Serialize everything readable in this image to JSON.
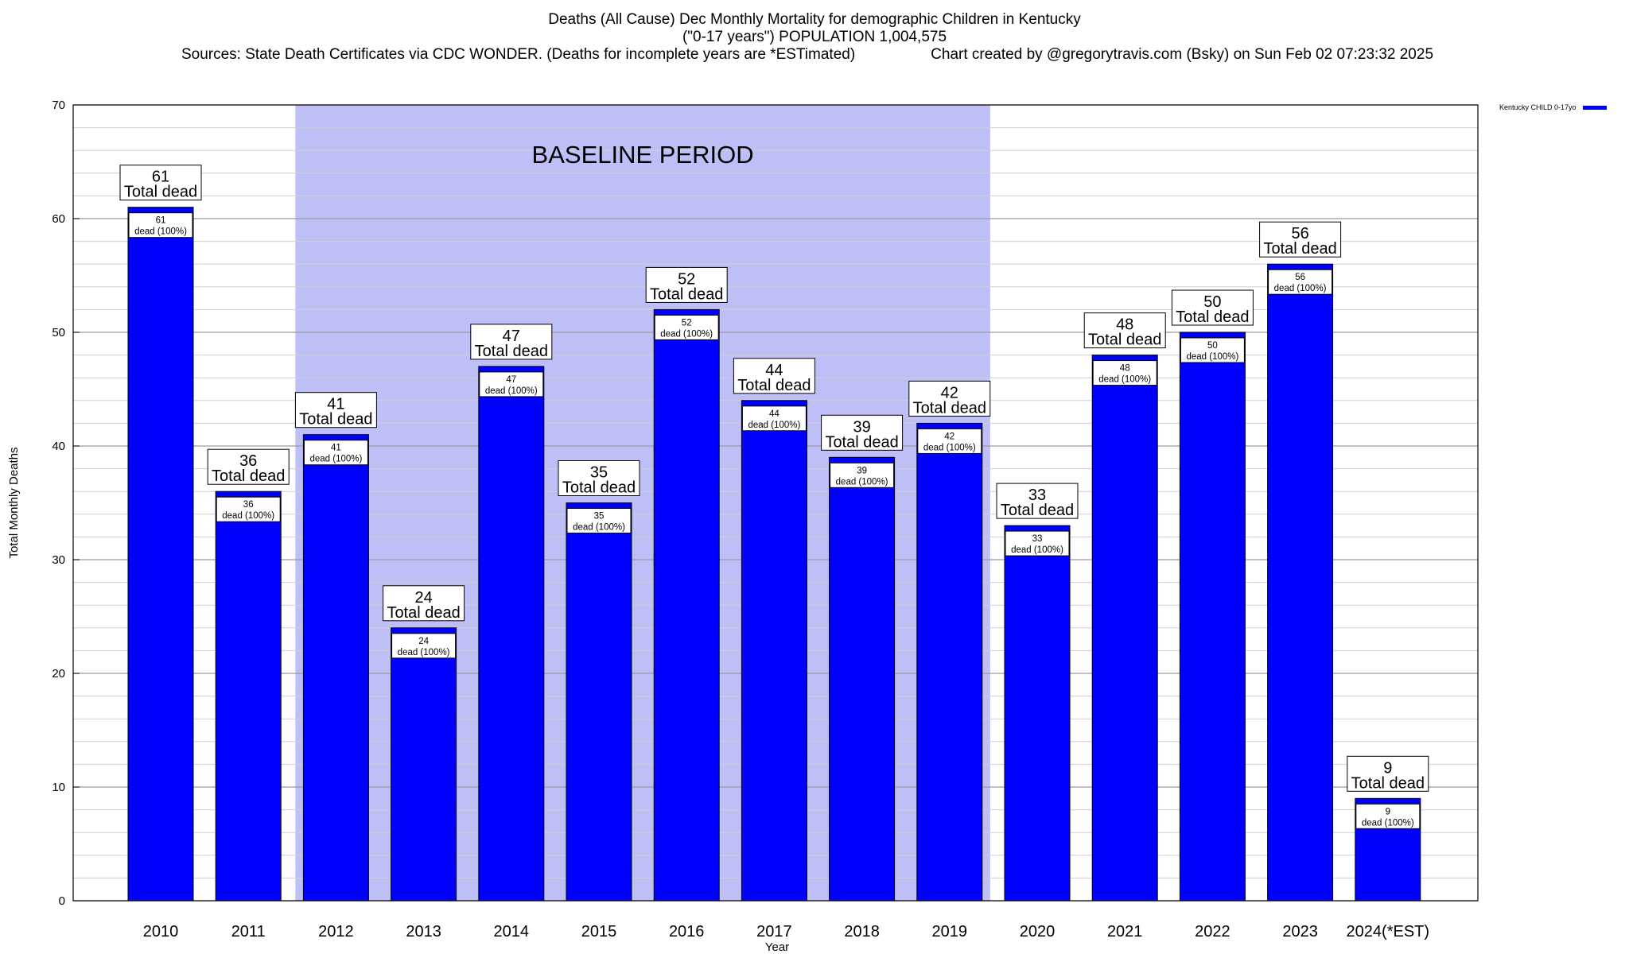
{
  "title": {
    "line1": "Deaths (All Cause) Dec Monthly Mortality for demographic Children in Kentucky",
    "line2": "(\"0-17 years\") POPULATION 1,004,575",
    "sources": "Sources: State Death Certificates via CDC WONDER. (Deaths for incomplete years are *ESTimated)",
    "credit": "Chart created by @gregorytravis.com (Bsky) on Sun Feb 02 07:23:32 2025"
  },
  "legend": {
    "label": "Kentucky CHILD 0-17yo",
    "color": "#0000ff"
  },
  "chart_data": {
    "type": "bar",
    "xlabel": "Year",
    "ylabel": "Total Monthly Deaths",
    "ylim": [
      0,
      70
    ],
    "yticks": [
      0,
      10,
      20,
      30,
      40,
      50,
      60,
      70
    ],
    "grid": true,
    "categories": [
      "2010",
      "2011",
      "2012",
      "2013",
      "2014",
      "2015",
      "2016",
      "2017",
      "2018",
      "2019",
      "2020",
      "2021",
      "2022",
      "2023",
      "2024(*EST)"
    ],
    "series": [
      {
        "name": "Kentucky CHILD 0-17yo",
        "color": "#0000ff",
        "values": [
          61,
          36,
          41,
          24,
          47,
          35,
          52,
          44,
          39,
          42,
          33,
          48,
          50,
          56,
          9
        ]
      }
    ],
    "total_label": "Total dead",
    "inner_label_suffix": "dead (100%)",
    "baseline": {
      "label": "BASELINE PERIOD",
      "from": "2012",
      "to": "2019",
      "color": "#bfbff8"
    }
  }
}
